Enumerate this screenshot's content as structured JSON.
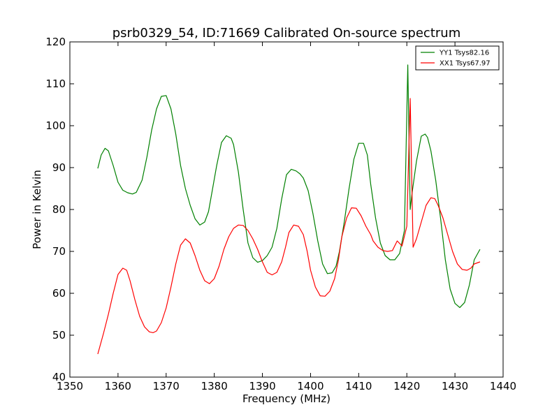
{
  "chart_data": {
    "type": "line",
    "title": "psrb0329_54, ID:71669 Calibrated On-source spectrum",
    "xlabel": "Frequency (MHz)",
    "ylabel": "Power in Kelvin",
    "xlim": [
      1350,
      1440
    ],
    "ylim": [
      40,
      120
    ],
    "xticks": [
      1350,
      1360,
      1370,
      1380,
      1390,
      1400,
      1410,
      1420,
      1430,
      1440
    ],
    "yticks": [
      40,
      50,
      60,
      70,
      80,
      90,
      100,
      110,
      120
    ],
    "grid": false,
    "legend_position": "top-right",
    "series": [
      {
        "name": "YY1 Tsys82.16",
        "color": "#008000",
        "x": [
          1355.8,
          1356.5,
          1357.3,
          1358.0,
          1359.0,
          1360.0,
          1361.0,
          1362.0,
          1363.0,
          1363.8,
          1365.0,
          1366.0,
          1367.0,
          1368.0,
          1369.0,
          1370.0,
          1371.0,
          1372.0,
          1373.0,
          1374.0,
          1375.0,
          1376.0,
          1377.0,
          1378.0,
          1378.8,
          1379.5,
          1380.5,
          1381.5,
          1382.5,
          1383.5,
          1384.0,
          1385.0,
          1386.0,
          1387.0,
          1388.0,
          1389.0,
          1390.0,
          1391.0,
          1392.0,
          1393.0,
          1394.0,
          1395.0,
          1396.0,
          1397.0,
          1397.8,
          1398.5,
          1399.5,
          1400.5,
          1401.5,
          1402.5,
          1403.5,
          1404.5,
          1405.3,
          1406.0,
          1407.0,
          1408.0,
          1409.0,
          1410.0,
          1411.0,
          1411.8,
          1412.5,
          1413.5,
          1414.5,
          1415.5,
          1416.5,
          1417.5,
          1418.5,
          1419.5,
          1420.2,
          1420.7,
          1421.1,
          1422.0,
          1423.0,
          1423.8,
          1424.3,
          1425.0,
          1426.0,
          1427.0,
          1428.0,
          1429.0,
          1430.0,
          1431.0,
          1432.0,
          1433.0,
          1434.0,
          1435.2
        ],
        "y": [
          89.8,
          93.0,
          94.6,
          94.0,
          90.5,
          86.5,
          84.6,
          84.0,
          83.7,
          84.1,
          87.0,
          92.5,
          99.0,
          104.0,
          107.0,
          107.2,
          104.0,
          98.0,
          90.5,
          85.0,
          81.0,
          77.8,
          76.3,
          77.0,
          79.5,
          84.0,
          90.5,
          96.0,
          97.6,
          97.0,
          95.5,
          89.0,
          80.0,
          72.0,
          68.5,
          67.4,
          67.8,
          69.0,
          71.0,
          75.5,
          82.5,
          88.3,
          89.6,
          89.2,
          88.5,
          87.5,
          84.5,
          79.0,
          72.5,
          67.0,
          64.7,
          64.9,
          66.5,
          70.0,
          77.0,
          85.0,
          92.0,
          95.8,
          95.8,
          93.0,
          86.0,
          78.0,
          72.0,
          69.0,
          68.0,
          68.0,
          69.5,
          75.0,
          114.5,
          80.0,
          84.0,
          91.5,
          97.5,
          98.0,
          97.2,
          94.0,
          87.0,
          78.0,
          68.0,
          61.0,
          57.6,
          56.6,
          57.8,
          62.0,
          68.0,
          70.5
        ]
      },
      {
        "name": "XX1 Tsys67.97",
        "color": "#ff0000",
        "x": [
          1355.8,
          1357.0,
          1358.0,
          1359.0,
          1360.0,
          1361.0,
          1361.8,
          1362.5,
          1363.5,
          1364.5,
          1365.5,
          1366.5,
          1367.3,
          1368.0,
          1369.0,
          1370.0,
          1371.0,
          1372.0,
          1373.0,
          1374.0,
          1375.0,
          1376.0,
          1377.0,
          1378.0,
          1379.0,
          1380.0,
          1381.0,
          1382.0,
          1383.0,
          1384.0,
          1385.0,
          1386.0,
          1387.0,
          1388.0,
          1389.0,
          1390.0,
          1391.0,
          1392.0,
          1393.0,
          1394.0,
          1394.8,
          1395.5,
          1396.5,
          1397.5,
          1398.5,
          1399.3,
          1400.0,
          1401.0,
          1402.0,
          1403.0,
          1404.0,
          1405.0,
          1405.8,
          1406.5,
          1407.5,
          1408.5,
          1409.5,
          1410.5,
          1411.5,
          1412.5,
          1413.0,
          1414.0,
          1415.0,
          1416.0,
          1417.0,
          1418.0,
          1419.0,
          1420.0,
          1420.7,
          1421.3,
          1422.0,
          1423.0,
          1424.0,
          1425.0,
          1425.8,
          1426.5,
          1427.5,
          1428.5,
          1429.5,
          1430.5,
          1431.5,
          1432.5,
          1433.3,
          1434.0,
          1435.2
        ],
        "y": [
          45.5,
          50.5,
          55.0,
          60.0,
          64.5,
          66.0,
          65.5,
          63.0,
          58.5,
          54.5,
          52.0,
          50.8,
          50.6,
          51.0,
          53.0,
          56.5,
          61.5,
          67.0,
          71.5,
          73.0,
          72.0,
          69.0,
          65.5,
          63.0,
          62.3,
          63.5,
          66.5,
          70.5,
          73.5,
          75.5,
          76.3,
          76.2,
          75.0,
          73.0,
          70.5,
          67.5,
          65.0,
          64.4,
          65.0,
          67.5,
          71.0,
          74.5,
          76.3,
          76.0,
          74.0,
          70.0,
          65.5,
          61.5,
          59.4,
          59.3,
          60.5,
          63.5,
          68.0,
          73.5,
          78.0,
          80.4,
          80.3,
          78.5,
          76.0,
          74.0,
          72.5,
          71.0,
          70.2,
          70.0,
          70.2,
          72.5,
          71.3,
          76.0,
          106.5,
          71.0,
          73.0,
          77.0,
          81.0,
          82.8,
          82.6,
          81.0,
          78.0,
          74.0,
          70.0,
          67.0,
          65.7,
          65.5,
          66.0,
          67.0,
          67.5
        ]
      }
    ]
  }
}
